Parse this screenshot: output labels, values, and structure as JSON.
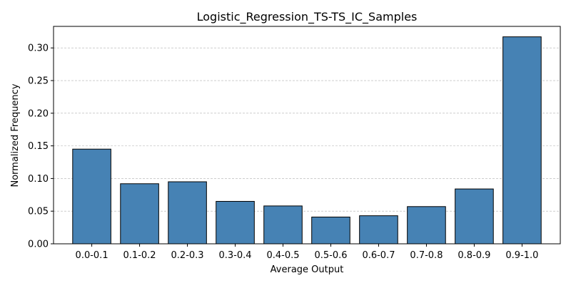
{
  "chart_data": {
    "type": "bar",
    "title": "Logistic_Regression_TS-TS_IC_Samples",
    "xlabel": "Average Output",
    "ylabel": "Normalized Frequency",
    "categories": [
      "0.0-0.1",
      "0.1-0.2",
      "0.2-0.3",
      "0.3-0.4",
      "0.4-0.5",
      "0.5-0.6",
      "0.6-0.7",
      "0.7-0.8",
      "0.8-0.9",
      "0.9-1.0"
    ],
    "values": [
      0.145,
      0.092,
      0.095,
      0.065,
      0.058,
      0.041,
      0.043,
      0.057,
      0.084,
      0.317
    ],
    "ylim": [
      0,
      0.333
    ],
    "yticks": [
      "0.00",
      "0.05",
      "0.10",
      "0.15",
      "0.20",
      "0.25",
      "0.30"
    ],
    "grid": "y-dashed",
    "legend": "none",
    "colors": {
      "bar_fill": "#4682b4",
      "bar_edge": "#000000",
      "grid": "#b0b0b0"
    }
  }
}
